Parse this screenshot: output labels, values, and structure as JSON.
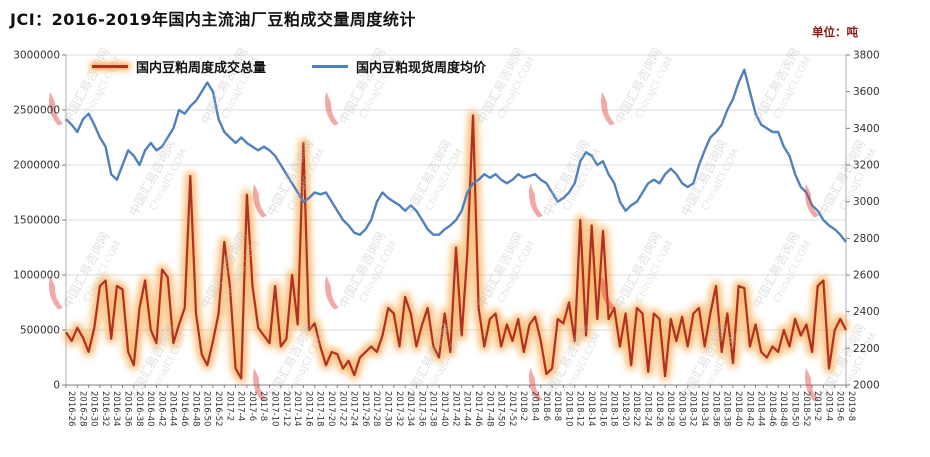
{
  "header": {
    "title": "JCI：2016-2019年国内主流油厂豆粕成交量周度统计",
    "unit_label": "单位：吨"
  },
  "watermark": {
    "cn": "中国汇易咨询网",
    "en": "ChinaJCI.COM"
  },
  "chart_data": {
    "type": "line",
    "title": "JCI：2016-2019年国内主流油厂豆粕成交量周度统计",
    "unit": "吨",
    "legend_position": "top",
    "grid": true,
    "tick_step": 2,
    "glow_color": "#f5a33c",
    "x": [
      "2016-26",
      "2016-27",
      "2016-28",
      "2016-29",
      "2016-30",
      "2016-31",
      "2016-32",
      "2016-33",
      "2016-34",
      "2016-35",
      "2016-36",
      "2016-37",
      "2016-38",
      "2016-39",
      "2016-40",
      "2016-41",
      "2016-42",
      "2016-43",
      "2016-44",
      "2016-45",
      "2016-46",
      "2016-47",
      "2016-48",
      "2016-49",
      "2016-50",
      "2016-51",
      "2016-52",
      "2017-1",
      "2017-2",
      "2017-3",
      "2017-4",
      "2017-5",
      "2017-6",
      "2017-7",
      "2017-8",
      "2017-9",
      "2017-10",
      "2017-11",
      "2017-12",
      "2017-13",
      "2017-14",
      "2017-15",
      "2017-16",
      "2017-17",
      "2017-18",
      "2017-19",
      "2017-20",
      "2017-21",
      "2017-22",
      "2017-23",
      "2017-24",
      "2017-25",
      "2017-26",
      "2017-27",
      "2017-28",
      "2017-29",
      "2017-30",
      "2017-31",
      "2017-32",
      "2017-33",
      "2017-34",
      "2017-35",
      "2017-36",
      "2017-37",
      "2017-38",
      "2017-39",
      "2017-40",
      "2017-41",
      "2017-42",
      "2017-43",
      "2017-44",
      "2017-45",
      "2017-46",
      "2017-47",
      "2017-48",
      "2017-49",
      "2017-50",
      "2017-51",
      "2017-52",
      "2018-1",
      "2018-2",
      "2018-3",
      "2018-4",
      "2018-5",
      "2018-6",
      "2018-7",
      "2018-8",
      "2018-9",
      "2018-10",
      "2018-11",
      "2018-12",
      "2018-13",
      "2018-14",
      "2018-15",
      "2018-16",
      "2018-17",
      "2018-18",
      "2018-19",
      "2018-20",
      "2018-21",
      "2018-22",
      "2018-23",
      "2018-24",
      "2018-25",
      "2018-26",
      "2018-27",
      "2018-28",
      "2018-29",
      "2018-30",
      "2018-31",
      "2018-32",
      "2018-33",
      "2018-34",
      "2018-35",
      "2018-36",
      "2018-37",
      "2018-38",
      "2018-39",
      "2018-40",
      "2018-41",
      "2018-42",
      "2018-43",
      "2018-44",
      "2018-45",
      "2018-46",
      "2018-47",
      "2018-48",
      "2018-49",
      "2018-50",
      "2018-51",
      "2018-52",
      "2019-1",
      "2019-2",
      "2019-3",
      "2019-4",
      "2019-5",
      "2019-6",
      "2019-7",
      "2019-8"
    ],
    "series": [
      {
        "name": "国内豆粕周度成交总量",
        "axis": "left",
        "color": "#b03024",
        "values": [
          480000,
          400000,
          520000,
          430000,
          300000,
          520000,
          900000,
          950000,
          420000,
          900000,
          870000,
          300000,
          180000,
          700000,
          950000,
          500000,
          380000,
          1050000,
          980000,
          380000,
          550000,
          700000,
          1900000,
          650000,
          280000,
          180000,
          400000,
          650000,
          1300000,
          900000,
          150000,
          60000,
          1730000,
          900000,
          520000,
          450000,
          380000,
          900000,
          350000,
          420000,
          1000000,
          550000,
          2200000,
          500000,
          560000,
          350000,
          180000,
          300000,
          280000,
          150000,
          220000,
          90000,
          250000,
          300000,
          350000,
          300000,
          450000,
          700000,
          650000,
          350000,
          800000,
          650000,
          350000,
          550000,
          700000,
          350000,
          250000,
          650000,
          300000,
          1250000,
          450000,
          1200000,
          2450000,
          700000,
          350000,
          600000,
          650000,
          350000,
          550000,
          400000,
          600000,
          300000,
          550000,
          620000,
          400000,
          100000,
          150000,
          600000,
          560000,
          750000,
          400000,
          1500000,
          450000,
          1450000,
          600000,
          1400000,
          600000,
          700000,
          350000,
          650000,
          180000,
          700000,
          650000,
          120000,
          650000,
          600000,
          80000,
          600000,
          400000,
          620000,
          350000,
          650000,
          700000,
          350000,
          650000,
          900000,
          300000,
          650000,
          200000,
          900000,
          880000,
          350000,
          550000,
          300000,
          250000,
          350000,
          300000,
          500000,
          350000,
          600000,
          450000,
          550000,
          300000,
          900000,
          950000,
          150000,
          500000,
          600000,
          500000
        ]
      },
      {
        "name": "国内豆粕现货周度均价",
        "axis": "right",
        "color": "#4f81bd",
        "values": [
          3450,
          3420,
          3380,
          3450,
          3480,
          3420,
          3350,
          3300,
          3150,
          3120,
          3200,
          3280,
          3250,
          3200,
          3280,
          3320,
          3280,
          3300,
          3350,
          3400,
          3500,
          3480,
          3520,
          3550,
          3600,
          3650,
          3600,
          3450,
          3380,
          3350,
          3320,
          3350,
          3320,
          3300,
          3280,
          3300,
          3280,
          3250,
          3200,
          3150,
          3100,
          3050,
          3000,
          3020,
          3050,
          3040,
          3050,
          3000,
          2950,
          2900,
          2870,
          2830,
          2820,
          2850,
          2900,
          3000,
          3050,
          3020,
          3000,
          2980,
          2950,
          2980,
          2950,
          2900,
          2850,
          2820,
          2820,
          2850,
          2870,
          2900,
          2950,
          3050,
          3100,
          3120,
          3150,
          3130,
          3150,
          3120,
          3100,
          3120,
          3150,
          3130,
          3140,
          3150,
          3120,
          3100,
          3050,
          3000,
          3020,
          3050,
          3100,
          3220,
          3270,
          3250,
          3200,
          3220,
          3150,
          3100,
          3000,
          2950,
          2980,
          3000,
          3050,
          3100,
          3120,
          3100,
          3150,
          3180,
          3150,
          3100,
          3080,
          3100,
          3200,
          3280,
          3350,
          3380,
          3420,
          3500,
          3560,
          3650,
          3720,
          3600,
          3480,
          3420,
          3400,
          3380,
          3380,
          3300,
          3250,
          3150,
          3080,
          3050,
          2980,
          2950,
          2900,
          2870,
          2850,
          2820,
          2780
        ]
      }
    ],
    "left_axis": {
      "min": 0,
      "max": 3000000,
      "step": 500000
    },
    "right_axis": {
      "min": 2000,
      "max": 3800,
      "step": 200
    }
  }
}
